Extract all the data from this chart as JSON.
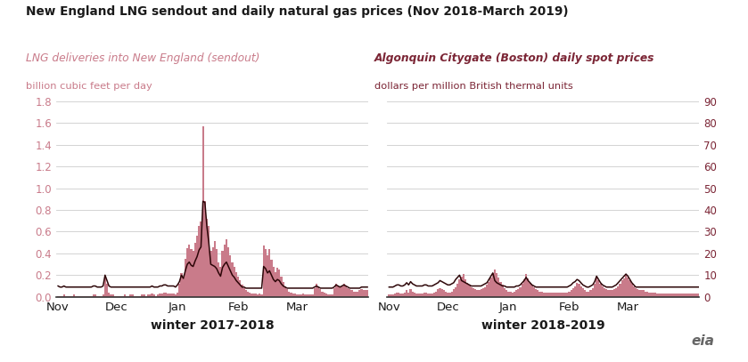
{
  "title": "New England LNG sendout and daily natural gas prices (Nov 2018-March 2019)",
  "left_label1": "LNG deliveries into New England (sendout)",
  "left_label2": "billion cubic feet per day",
  "right_label1": "Algonquin Citygate (Boston) daily spot prices",
  "right_label2": "dollars per million British thermal units",
  "xlabel_left": "winter 2017-2018",
  "xlabel_right": "winter 2018-2019",
  "xtick_labels": [
    "Nov",
    "Dec",
    "Jan",
    "Feb",
    "Mar"
  ],
  "ylim_left": [
    0.0,
    1.8
  ],
  "ylim_right": [
    0,
    90
  ],
  "yticks_left": [
    0.0,
    0.2,
    0.4,
    0.6,
    0.8,
    1.0,
    1.2,
    1.4,
    1.6,
    1.8
  ],
  "yticks_right": [
    0,
    10,
    20,
    30,
    40,
    50,
    60,
    70,
    80,
    90
  ],
  "bar_color": "#c97b8a",
  "line_color": "#2d0608",
  "title_color": "#1a1a1a",
  "left_label_color": "#c97b8a",
  "right_label_color": "#7b2535",
  "left_tick_color": "#c97b8a",
  "right_tick_color": "#7b2535",
  "background_color": "#ffffff",
  "grid_color": "#cccccc",
  "w2017_lng": [
    0.01,
    0.01,
    0.01,
    0.02,
    0.01,
    0.01,
    0.01,
    0.01,
    0.02,
    0.01,
    0.01,
    0.01,
    0.01,
    0.01,
    0.01,
    0.01,
    0.01,
    0.01,
    0.02,
    0.02,
    0.01,
    0.01,
    0.01,
    0.02,
    0.19,
    0.12,
    0.04,
    0.02,
    0.02,
    0.01,
    0.01,
    0.01,
    0.01,
    0.01,
    0.02,
    0.01,
    0.01,
    0.02,
    0.02,
    0.01,
    0.01,
    0.01,
    0.01,
    0.02,
    0.02,
    0.01,
    0.02,
    0.02,
    0.03,
    0.02,
    0.01,
    0.02,
    0.03,
    0.03,
    0.04,
    0.04,
    0.03,
    0.03,
    0.03,
    0.03,
    0.02,
    0.04,
    0.12,
    0.22,
    0.18,
    0.35,
    0.45,
    0.48,
    0.44,
    0.42,
    0.5,
    0.56,
    0.65,
    0.69,
    1.57,
    0.88,
    0.72,
    0.65,
    0.42,
    0.46,
    0.51,
    0.44,
    0.32,
    0.28,
    0.42,
    0.48,
    0.53,
    0.46,
    0.38,
    0.32,
    0.28,
    0.23,
    0.19,
    0.15,
    0.11,
    0.08,
    0.06,
    0.05,
    0.04,
    0.03,
    0.03,
    0.03,
    0.02,
    0.03,
    0.02,
    0.47,
    0.44,
    0.38,
    0.44,
    0.34,
    0.28,
    0.23,
    0.27,
    0.25,
    0.19,
    0.14,
    0.1,
    0.07,
    0.05,
    0.04,
    0.03,
    0.03,
    0.02,
    0.02,
    0.02,
    0.03,
    0.02,
    0.02,
    0.02,
    0.02,
    0.02,
    0.08,
    0.12,
    0.09,
    0.07,
    0.05,
    0.04,
    0.03,
    0.02,
    0.02,
    0.02,
    0.08,
    0.12,
    0.1,
    0.09,
    0.1,
    0.12,
    0.1,
    0.08,
    0.07,
    0.06,
    0.05,
    0.05,
    0.05,
    0.06,
    0.07,
    0.06,
    0.06,
    0.06
  ],
  "w2017_price_scaled": [
    0.1,
    0.09,
    0.09,
    0.1,
    0.09,
    0.09,
    0.09,
    0.09,
    0.09,
    0.09,
    0.09,
    0.09,
    0.09,
    0.09,
    0.09,
    0.09,
    0.09,
    0.09,
    0.1,
    0.1,
    0.09,
    0.09,
    0.09,
    0.1,
    0.2,
    0.15,
    0.1,
    0.09,
    0.09,
    0.09,
    0.09,
    0.09,
    0.09,
    0.09,
    0.09,
    0.09,
    0.09,
    0.09,
    0.09,
    0.09,
    0.09,
    0.09,
    0.09,
    0.09,
    0.09,
    0.09,
    0.09,
    0.09,
    0.1,
    0.09,
    0.09,
    0.09,
    0.1,
    0.1,
    0.11,
    0.11,
    0.1,
    0.1,
    0.1,
    0.1,
    0.09,
    0.11,
    0.14,
    0.2,
    0.17,
    0.24,
    0.3,
    0.32,
    0.29,
    0.28,
    0.33,
    0.37,
    0.43,
    0.46,
    0.88,
    0.87,
    0.65,
    0.5,
    0.3,
    0.29,
    0.28,
    0.26,
    0.22,
    0.19,
    0.27,
    0.3,
    0.32,
    0.28,
    0.24,
    0.2,
    0.18,
    0.15,
    0.13,
    0.11,
    0.09,
    0.09,
    0.08,
    0.08,
    0.08,
    0.08,
    0.08,
    0.08,
    0.08,
    0.08,
    0.08,
    0.28,
    0.26,
    0.22,
    0.24,
    0.2,
    0.16,
    0.14,
    0.16,
    0.15,
    0.12,
    0.1,
    0.09,
    0.08,
    0.08,
    0.08,
    0.08,
    0.08,
    0.08,
    0.08,
    0.08,
    0.08,
    0.08,
    0.08,
    0.08,
    0.08,
    0.08,
    0.09,
    0.1,
    0.09,
    0.08,
    0.08,
    0.08,
    0.08,
    0.08,
    0.08,
    0.08,
    0.09,
    0.11,
    0.1,
    0.09,
    0.1,
    0.11,
    0.1,
    0.09,
    0.08,
    0.08,
    0.08,
    0.08,
    0.08,
    0.08,
    0.09,
    0.09,
    0.09,
    0.09
  ],
  "w2018_lng": [
    0.02,
    0.02,
    0.02,
    0.03,
    0.04,
    0.04,
    0.03,
    0.03,
    0.04,
    0.06,
    0.04,
    0.07,
    0.05,
    0.04,
    0.03,
    0.03,
    0.03,
    0.03,
    0.04,
    0.04,
    0.03,
    0.03,
    0.03,
    0.04,
    0.05,
    0.07,
    0.08,
    0.07,
    0.06,
    0.05,
    0.04,
    0.04,
    0.05,
    0.07,
    0.09,
    0.12,
    0.16,
    0.19,
    0.21,
    0.16,
    0.13,
    0.11,
    0.09,
    0.08,
    0.07,
    0.06,
    0.06,
    0.07,
    0.08,
    0.09,
    0.11,
    0.14,
    0.18,
    0.22,
    0.25,
    0.22,
    0.18,
    0.14,
    0.11,
    0.08,
    0.06,
    0.05,
    0.05,
    0.04,
    0.05,
    0.06,
    0.07,
    0.09,
    0.12,
    0.16,
    0.21,
    0.17,
    0.13,
    0.11,
    0.09,
    0.07,
    0.06,
    0.05,
    0.05,
    0.04,
    0.04,
    0.04,
    0.04,
    0.04,
    0.04,
    0.04,
    0.04,
    0.04,
    0.04,
    0.04,
    0.04,
    0.04,
    0.05,
    0.06,
    0.08,
    0.1,
    0.13,
    0.12,
    0.1,
    0.08,
    0.06,
    0.05,
    0.05,
    0.06,
    0.08,
    0.12,
    0.19,
    0.15,
    0.12,
    0.1,
    0.08,
    0.07,
    0.06,
    0.06,
    0.06,
    0.07,
    0.08,
    0.1,
    0.12,
    0.15,
    0.17,
    0.2,
    0.18,
    0.15,
    0.12,
    0.1,
    0.08,
    0.07,
    0.06,
    0.06,
    0.06,
    0.05,
    0.05,
    0.04,
    0.04,
    0.04,
    0.04,
    0.03,
    0.03,
    0.03,
    0.03,
    0.03,
    0.03,
    0.03,
    0.03,
    0.03,
    0.03,
    0.03,
    0.03,
    0.03,
    0.03,
    0.03,
    0.03,
    0.03,
    0.03,
    0.03,
    0.03,
    0.03,
    0.03
  ],
  "w2018_price_scaled": [
    0.09,
    0.09,
    0.09,
    0.1,
    0.11,
    0.11,
    0.1,
    0.1,
    0.11,
    0.13,
    0.11,
    0.14,
    0.12,
    0.11,
    0.1,
    0.1,
    0.1,
    0.1,
    0.11,
    0.11,
    0.1,
    0.1,
    0.1,
    0.11,
    0.12,
    0.13,
    0.15,
    0.14,
    0.13,
    0.12,
    0.11,
    0.11,
    0.12,
    0.13,
    0.16,
    0.18,
    0.2,
    0.15,
    0.14,
    0.13,
    0.12,
    0.11,
    0.1,
    0.1,
    0.1,
    0.1,
    0.1,
    0.1,
    0.11,
    0.12,
    0.13,
    0.16,
    0.19,
    0.22,
    0.15,
    0.13,
    0.12,
    0.11,
    0.1,
    0.1,
    0.09,
    0.09,
    0.09,
    0.09,
    0.09,
    0.1,
    0.1,
    0.11,
    0.13,
    0.15,
    0.18,
    0.15,
    0.13,
    0.11,
    0.1,
    0.09,
    0.09,
    0.09,
    0.09,
    0.09,
    0.09,
    0.09,
    0.09,
    0.09,
    0.09,
    0.09,
    0.09,
    0.09,
    0.09,
    0.09,
    0.09,
    0.09,
    0.1,
    0.11,
    0.13,
    0.14,
    0.16,
    0.15,
    0.13,
    0.11,
    0.1,
    0.09,
    0.09,
    0.1,
    0.11,
    0.14,
    0.19,
    0.16,
    0.13,
    0.11,
    0.1,
    0.09,
    0.09,
    0.09,
    0.09,
    0.1,
    0.11,
    0.13,
    0.15,
    0.17,
    0.19,
    0.21,
    0.19,
    0.16,
    0.13,
    0.11,
    0.09,
    0.09,
    0.09,
    0.09,
    0.09,
    0.09,
    0.09,
    0.09,
    0.09,
    0.09,
    0.09,
    0.09,
    0.09,
    0.09,
    0.09,
    0.09,
    0.09,
    0.09,
    0.09,
    0.09,
    0.09,
    0.09,
    0.09,
    0.09,
    0.09,
    0.09,
    0.09,
    0.09,
    0.09,
    0.09,
    0.09,
    0.09,
    0.09
  ]
}
